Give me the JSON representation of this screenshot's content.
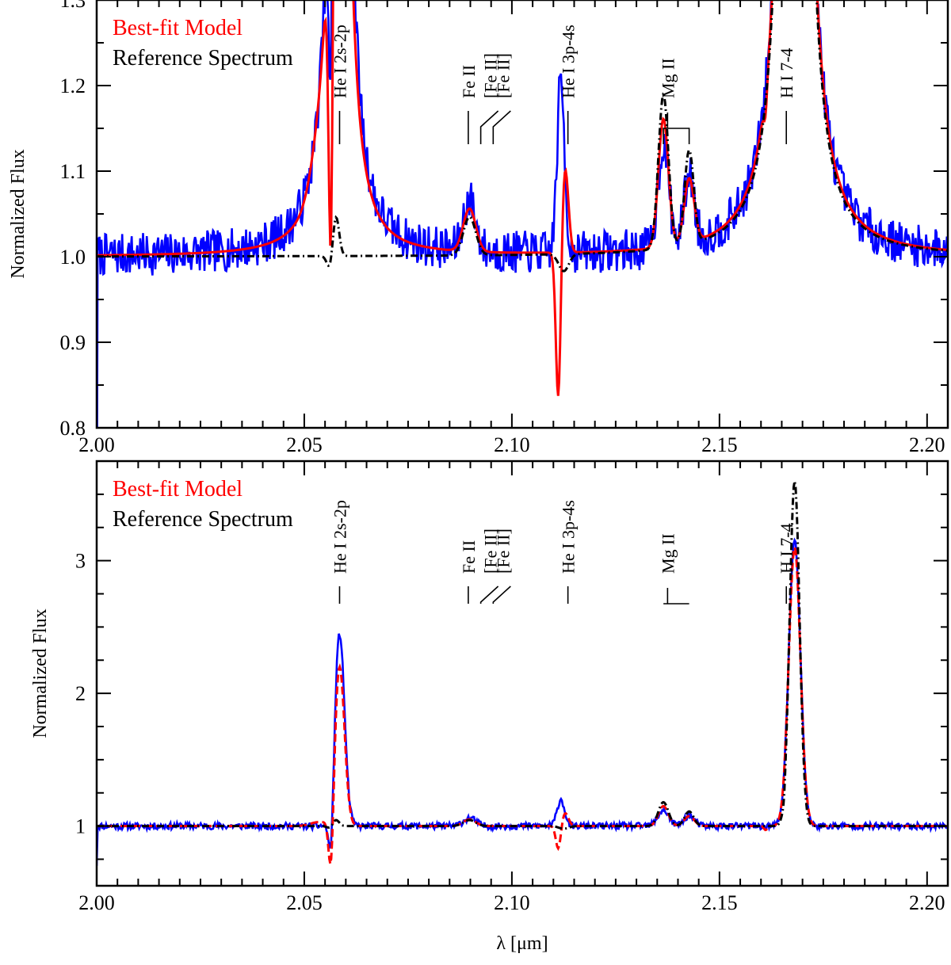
{
  "chart_data": [
    {
      "type": "line",
      "panel": "top",
      "xlabel": "",
      "ylabel": "Normalized Flux",
      "xlim": [
        2.0,
        2.205
      ],
      "ylim": [
        0.8,
        1.3
      ],
      "xticks": [
        2.0,
        2.05,
        2.1,
        2.15,
        2.2
      ],
      "xtick_labels": [
        "2.00",
        "2.05",
        "2.10",
        "2.15",
        "2.20"
      ],
      "yticks": [
        0.8,
        0.9,
        1.0,
        1.1,
        1.2,
        1.3
      ],
      "ytick_labels": [
        "0.8",
        "0.9",
        "1.0",
        "1.1",
        "1.2",
        "1.3"
      ],
      "legend": [
        "Best-fit Model",
        "Reference Spectrum"
      ],
      "legend_colors": [
        "#ff0000",
        "#000000"
      ],
      "line_ids": [
        {
          "label": "He I 2s-2p",
          "x": 2.0585
        },
        {
          "label": "Fe II",
          "x": 2.0895
        },
        {
          "label": "[Fe II]",
          "x": 2.0925
        },
        {
          "label": "[Fe II]",
          "x": 2.0955
        },
        {
          "label": "He I 3p-4s",
          "x": 2.1135
        },
        {
          "label": "Mg II",
          "x": 2.1375
        },
        {
          "label": "H I 7-4",
          "x": 2.1661
        }
      ],
      "series": [
        {
          "name": "observed",
          "color": "#0000ff",
          "style": "solid",
          "seed": 7,
          "noise": 0.025
        },
        {
          "name": "Best-fit Model",
          "color": "#ff0000",
          "style": "solid"
        },
        {
          "name": "Reference Spectrum",
          "color": "#000000",
          "style": "dashdot"
        }
      ]
    },
    {
      "type": "line",
      "panel": "bottom",
      "xlabel": "λ [μm]",
      "ylabel": "Normalized Flux",
      "xlim": [
        2.0,
        2.205
      ],
      "ylim": [
        0.55,
        3.75
      ],
      "xticks": [
        2.0,
        2.05,
        2.1,
        2.15,
        2.2
      ],
      "xtick_labels": [
        "2.00",
        "2.05",
        "2.10",
        "2.15",
        "2.20"
      ],
      "yticks": [
        1,
        2,
        3
      ],
      "ytick_labels": [
        "1",
        "2",
        "3"
      ],
      "legend": [
        "Best-fit Model",
        "Reference Spectrum"
      ],
      "legend_colors": [
        "#ff0000",
        "#000000"
      ],
      "line_ids": [
        {
          "label": "He I 2s-2p",
          "x": 2.0585
        },
        {
          "label": "Fe II",
          "x": 2.0895
        },
        {
          "label": "[Fe II]",
          "x": 2.0925
        },
        {
          "label": "[Fe II]",
          "x": 2.0955
        },
        {
          "label": "He I 3p-4s",
          "x": 2.1135
        },
        {
          "label": "Mg II",
          "x": 2.1375
        },
        {
          "label": "H I 7-4",
          "x": 2.1661
        }
      ],
      "series": [
        {
          "name": "observed",
          "color": "#0000ff",
          "style": "solid",
          "seed": 11,
          "noise": 0.025
        },
        {
          "name": "Best-fit Model",
          "color": "#ff0000",
          "style": "dashed"
        },
        {
          "name": "Reference Spectrum",
          "color": "#000000",
          "style": "dashdot"
        }
      ]
    }
  ],
  "features": {
    "model": [
      {
        "x": 2.0565,
        "amp": -0.55,
        "w": 0.0006
      },
      {
        "x": 2.0585,
        "amp": 1.2,
        "w": 0.0012
      },
      {
        "x": 2.0535,
        "amp": 0.03,
        "w": 0.002
      },
      {
        "x": 2.0898,
        "amp": 0.05,
        "w": 0.0015
      },
      {
        "x": 2.1112,
        "amp": -0.18,
        "w": 0.0006
      },
      {
        "x": 2.1128,
        "amp": 0.1,
        "w": 0.0008
      },
      {
        "x": 2.1365,
        "amp": 0.15,
        "w": 0.0012
      },
      {
        "x": 2.1427,
        "amp": 0.075,
        "w": 0.0012
      },
      {
        "x": 2.1611,
        "amp": -0.03,
        "w": 0.0004
      },
      {
        "x": 2.1681,
        "amp": 2.1,
        "w": 0.0014
      }
    ],
    "reference": [
      {
        "x": 2.0575,
        "amp": 0.055,
        "w": 0.0008
      },
      {
        "x": 2.0565,
        "amp": -0.025,
        "w": 0.0008
      },
      {
        "x": 2.0898,
        "amp": 0.045,
        "w": 0.0015
      },
      {
        "x": 2.1125,
        "amp": -0.02,
        "w": 0.0012
      },
      {
        "x": 2.1365,
        "amp": 0.18,
        "w": 0.0012
      },
      {
        "x": 2.1427,
        "amp": 0.11,
        "w": 0.0011
      },
      {
        "x": 2.1655,
        "amp": -0.05,
        "w": 0.0003
      },
      {
        "x": 2.1681,
        "amp": 2.6,
        "w": 0.0012
      }
    ],
    "observed": [
      {
        "x": 2.0565,
        "amp": -0.45,
        "w": 0.0006
      },
      {
        "x": 2.0585,
        "amp": 1.45,
        "w": 0.0012
      },
      {
        "x": 2.0898,
        "amp": 0.06,
        "w": 0.0015
      },
      {
        "x": 2.1118,
        "amp": 0.2,
        "w": 0.0009
      },
      {
        "x": 2.1365,
        "amp": 0.12,
        "w": 0.0013
      },
      {
        "x": 2.1427,
        "amp": 0.08,
        "w": 0.0012
      },
      {
        "x": 2.1681,
        "amp": 2.15,
        "w": 0.0014
      }
    ]
  }
}
